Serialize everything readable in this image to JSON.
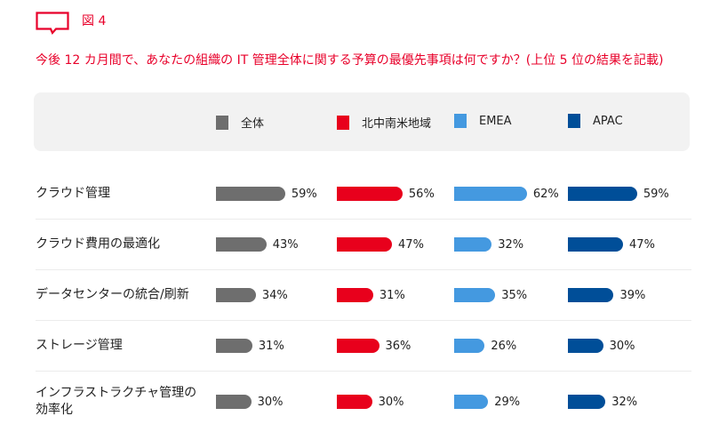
{
  "figure": {
    "label": "図 4",
    "question": "今後 12 カ月間で、あなたの組織の IT 管理全体に関する予算の最優先事項は何ですか？(上位 5 位の結果を記載)"
  },
  "legend": [
    {
      "label": "全体",
      "color": "#6e6e6e"
    },
    {
      "label": "北中南米地域",
      "color": "#e8001c"
    },
    {
      "label": "EMEA",
      "color": "#4499e0"
    },
    {
      "label": "APAC",
      "color": "#004e98"
    }
  ],
  "rows": [
    {
      "label": "クラウド管理",
      "values": [
        "59%",
        "56%",
        "62%",
        "59%"
      ]
    },
    {
      "label": "クラウド費用の最適化",
      "values": [
        "43%",
        "47%",
        "32%",
        "47%"
      ]
    },
    {
      "label": "データセンターの統合/刷新",
      "values": [
        "34%",
        "31%",
        "35%",
        "39%"
      ]
    },
    {
      "label": "ストレージ管理",
      "values": [
        "31%",
        "36%",
        "26%",
        "30%"
      ]
    },
    {
      "label": "インフラストラクチャ管理の効率化",
      "values": [
        "30%",
        "30%",
        "29%",
        "32%"
      ]
    }
  ],
  "chart_data": {
    "type": "bar",
    "orientation": "horizontal",
    "title": "図 4",
    "subtitle": "今後 12 カ月間で、あなたの組織の IT 管理全体に関する予算の最優先事項は何ですか？(上位 5 位の結果を記載)",
    "categories": [
      "クラウド管理",
      "クラウド費用の最適化",
      "データセンターの統合/刷新",
      "ストレージ管理",
      "インフラストラクチャ管理の効率化"
    ],
    "series": [
      {
        "name": "全体",
        "color": "#6e6e6e",
        "values": [
          59,
          43,
          34,
          31,
          30
        ]
      },
      {
        "name": "北中南米地域",
        "color": "#e8001c",
        "values": [
          56,
          47,
          31,
          36,
          30
        ]
      },
      {
        "name": "EMEA",
        "color": "#4499e0",
        "values": [
          62,
          32,
          35,
          26,
          29
        ]
      },
      {
        "name": "APAC",
        "color": "#004e98",
        "values": [
          59,
          47,
          39,
          30,
          32
        ]
      }
    ],
    "unit": "%",
    "legend_position": "top",
    "grid": false
  }
}
